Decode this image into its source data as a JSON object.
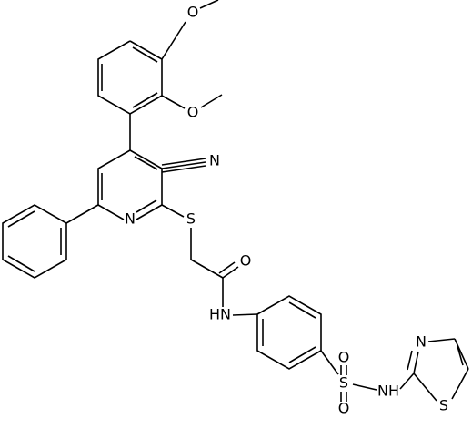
{
  "atoms": [
    "O",
    "O",
    "N",
    "N",
    "S",
    "O",
    "HN",
    "O",
    "S",
    "O",
    "NH",
    "N",
    "S"
  ]
}
